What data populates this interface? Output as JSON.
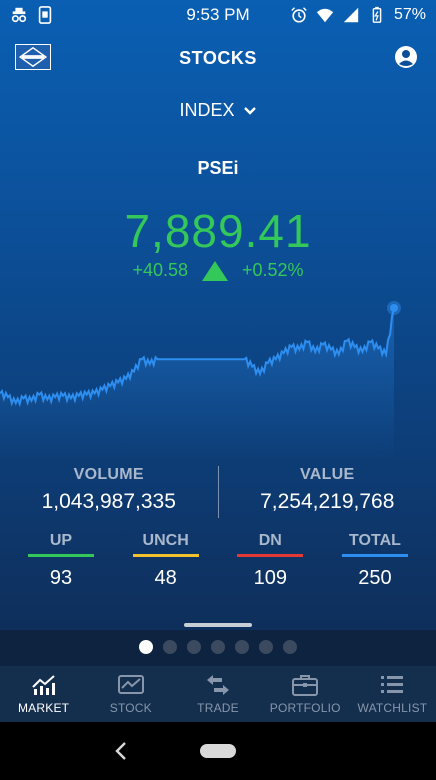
{
  "status_bar": {
    "time": "9:53 PM",
    "battery": "57%"
  },
  "header": {
    "title": "STOCKS"
  },
  "index_selector": {
    "label": "INDEX"
  },
  "index": {
    "name": "PSEi",
    "value": "7,889.41",
    "change": "+40.58",
    "change_percent": "+0.52%",
    "direction": "up"
  },
  "colors": {
    "positive": "#34c759",
    "line": "#2e8ef0",
    "up_bar": "#34c759",
    "unch_bar": "#f2c12e",
    "dn_bar": "#e53935",
    "total_bar": "#2e8ef0"
  },
  "chart_data": {
    "type": "line",
    "series": [
      {
        "values": [
          0.3,
          0.27,
          0.22,
          0.26,
          0.24,
          0.29,
          0.25,
          0.27,
          0.28,
          0.26,
          0.28,
          0.29,
          0.3,
          0.33,
          0.36,
          0.39,
          0.42,
          0.48,
          0.58,
          0.54,
          0.58,
          0.58,
          0.58,
          0.58,
          0.58,
          0.58,
          0.58,
          0.58,
          0.58,
          0.58,
          0.58,
          0.58,
          0.52,
          0.46,
          0.55,
          0.58,
          0.63,
          0.68,
          0.66,
          0.72,
          0.64,
          0.7,
          0.66,
          0.62,
          0.73,
          0.68,
          0.64,
          0.72,
          0.67,
          0.62,
          1.0
        ]
      }
    ],
    "last_point_marker": true
  },
  "stats": {
    "volume_label": "VOLUME",
    "volume_value": "1,043,987,335",
    "value_label": "VALUE",
    "value_value": "7,254,219,768"
  },
  "breadth": [
    {
      "label": "UP",
      "value": "93",
      "color": "#34c759"
    },
    {
      "label": "UNCH",
      "value": "48",
      "color": "#f2c12e"
    },
    {
      "label": "DN",
      "value": "109",
      "color": "#e53935"
    },
    {
      "label": "TOTAL",
      "value": "250",
      "color": "#2e8ef0"
    }
  ],
  "pager": {
    "count": 7,
    "active": 0
  },
  "nav": [
    {
      "label": "MARKET",
      "icon": "market-chart-icon",
      "active": true
    },
    {
      "label": "STOCK",
      "icon": "stock-chart-icon",
      "active": false
    },
    {
      "label": "TRADE",
      "icon": "trade-arrows-icon",
      "active": false
    },
    {
      "label": "PORTFOLIO",
      "icon": "briefcase-icon",
      "active": false
    },
    {
      "label": "WATCHLIST",
      "icon": "list-icon",
      "active": false
    }
  ]
}
